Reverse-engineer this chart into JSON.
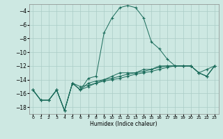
{
  "xlabel": "Humidex (Indice chaleur)",
  "bg_color": "#cde8e2",
  "grid_color": "#aaccc6",
  "line_color": "#1a6b5a",
  "xlim": [
    -0.5,
    23.5
  ],
  "ylim": [
    -19,
    -3
  ],
  "yticks": [
    -18,
    -16,
    -14,
    -12,
    -10,
    -8,
    -6,
    -4
  ],
  "s1_x": [
    0,
    1,
    2,
    3,
    4,
    5,
    6,
    7,
    8,
    9,
    10,
    11,
    12,
    13,
    14,
    15,
    16,
    17,
    18,
    19,
    20,
    21,
    22,
    23
  ],
  "s1_y": [
    -15.5,
    -17.0,
    -17.0,
    -15.5,
    -18.5,
    -14.5,
    -15.5,
    -13.8,
    -13.5,
    -7.2,
    -5.0,
    -3.5,
    -3.2,
    -3.5,
    -5.0,
    -8.5,
    -9.5,
    -11.0,
    -12.0,
    -12.0,
    -12.0,
    -13.0,
    -12.5,
    -12.0
  ],
  "s2_x": [
    0,
    1,
    2,
    3,
    4,
    5,
    6,
    7,
    8,
    9,
    10,
    11,
    12,
    13,
    14,
    15,
    16,
    17,
    18,
    19,
    20,
    21,
    22,
    23
  ],
  "s2_y": [
    -15.5,
    -17.0,
    -17.0,
    -15.5,
    -18.5,
    -14.5,
    -15.5,
    -15.0,
    -14.5,
    -14.0,
    -13.5,
    -13.0,
    -13.0,
    -13.0,
    -12.5,
    -12.5,
    -12.0,
    -12.0,
    -12.0,
    -12.0,
    -12.0,
    -13.0,
    -13.5,
    -12.0
  ],
  "s3_x": [
    0,
    1,
    2,
    3,
    4,
    5,
    6,
    7,
    8,
    9,
    10,
    11,
    12,
    13,
    14,
    15,
    16,
    17,
    18,
    19,
    20,
    21,
    22,
    23
  ],
  "s3_y": [
    -15.5,
    -17.0,
    -17.0,
    -15.5,
    -18.5,
    -14.5,
    -15.5,
    -14.5,
    -14.2,
    -14.0,
    -13.8,
    -13.5,
    -13.2,
    -13.0,
    -12.8,
    -12.5,
    -12.2,
    -12.0,
    -12.0,
    -12.0,
    -12.0,
    -13.0,
    -13.5,
    -12.0
  ],
  "s4_x": [
    0,
    1,
    2,
    3,
    4,
    5,
    6,
    7,
    8,
    9,
    10,
    11,
    12,
    13,
    14,
    15,
    16,
    17,
    18,
    19,
    20,
    21,
    22,
    23
  ],
  "s4_y": [
    -15.5,
    -17.0,
    -17.0,
    -15.5,
    -18.5,
    -14.5,
    -15.0,
    -14.8,
    -14.5,
    -14.2,
    -14.0,
    -13.8,
    -13.5,
    -13.2,
    -13.0,
    -12.8,
    -12.5,
    -12.2,
    -12.0,
    -12.0,
    -12.0,
    -13.0,
    -13.5,
    -12.0
  ]
}
